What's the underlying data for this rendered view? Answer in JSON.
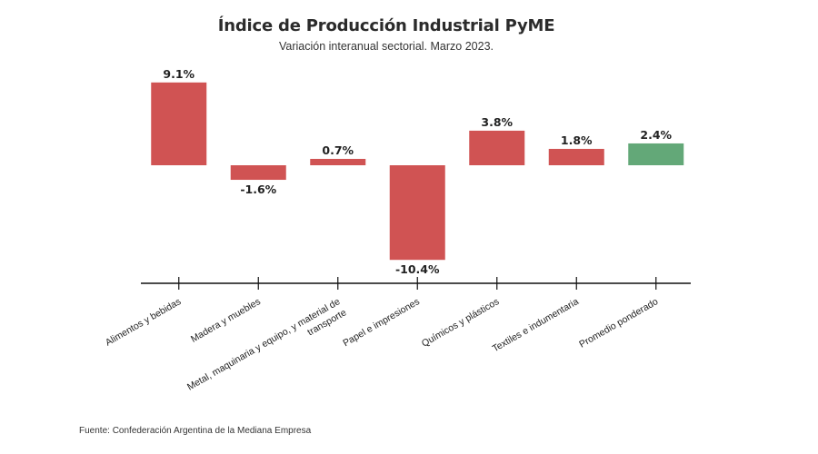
{
  "chart_data": {
    "type": "bar",
    "title": "Índice de Producción Industrial PyME",
    "subtitle": "Variación interanual sectorial. Marzo 2023.",
    "categories": [
      [
        "Alimentos y bebidas"
      ],
      [
        "Madera y muebles"
      ],
      [
        "Metal, maquinaria y equipo, y material de",
        "transporte"
      ],
      [
        "Papel e impresiones"
      ],
      [
        "Químicos y plásticos"
      ],
      [
        "Textiles e indumentaria"
      ],
      [
        "Promedio ponderado"
      ]
    ],
    "values": [
      9.1,
      -1.6,
      0.7,
      -10.4,
      3.8,
      1.8,
      2.4
    ],
    "value_labels": [
      "9.1%",
      "-1.6%",
      "0.7%",
      "-10.4%",
      "3.8%",
      "1.8%",
      "2.4%"
    ],
    "ylim": [
      -13,
      10
    ],
    "grid": false,
    "colors": {
      "sector": "#d05353",
      "average": "#63a878"
    },
    "highlight_index": 6
  },
  "footer": {
    "source": "Fuente: Confederación Argentina de la Mediana Empresa"
  }
}
